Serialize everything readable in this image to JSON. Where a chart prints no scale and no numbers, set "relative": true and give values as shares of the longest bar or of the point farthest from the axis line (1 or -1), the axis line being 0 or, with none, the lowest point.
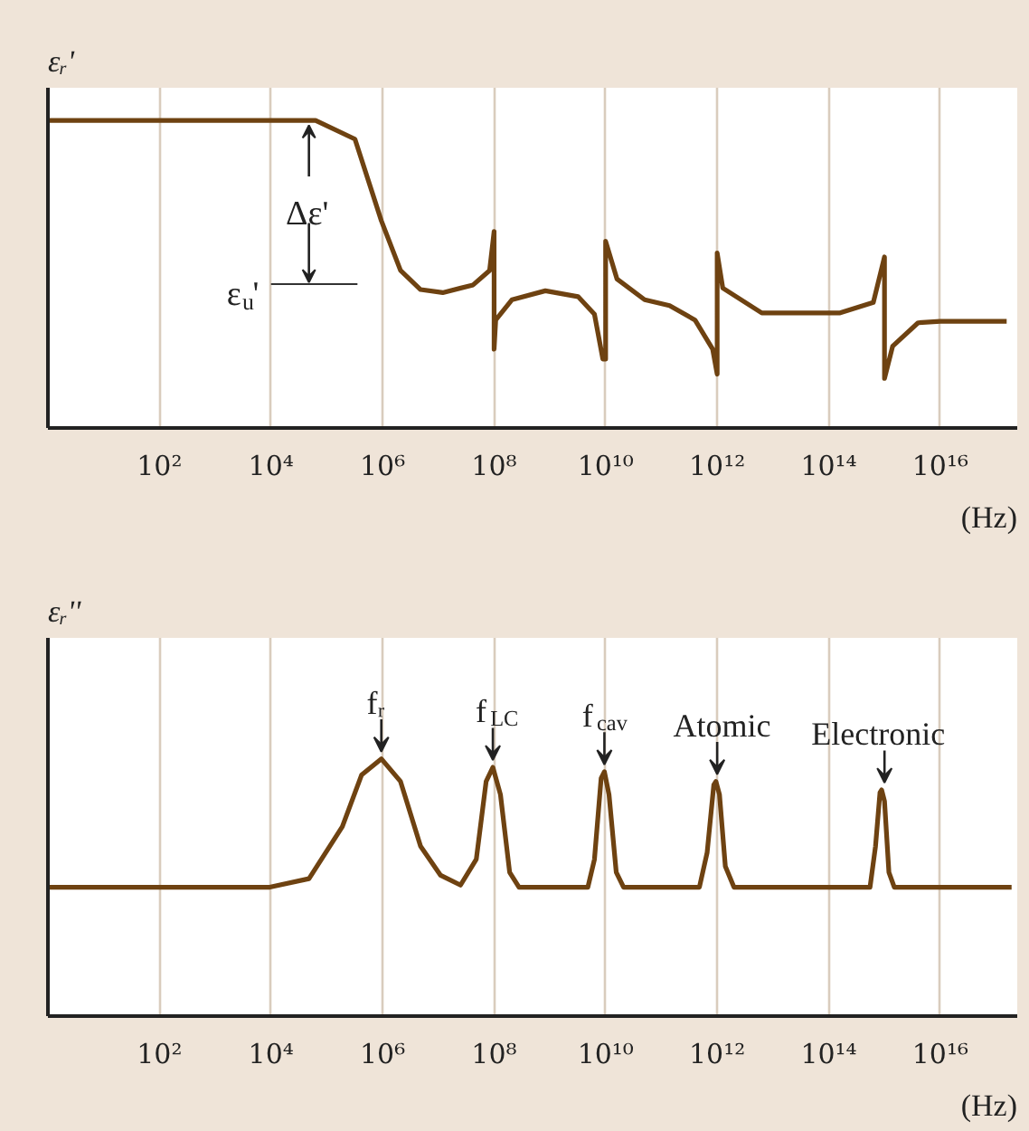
{
  "chart_data": [
    {
      "type": "line",
      "relative": true,
      "ylabel": "εᵣ'",
      "xlabel": "(Hz)",
      "log": "x",
      "grid": "x",
      "tick_labels": "x",
      "line_style": "solid",
      "marker": "none",
      "xlim": [
        1,
        2.4e+17
      ],
      "xticks": [
        {
          "value": 100.0,
          "label": "10²"
        },
        {
          "value": 10000.0,
          "label": "10⁴"
        },
        {
          "value": 1000000.0,
          "label": "10⁶"
        },
        {
          "value": 100000000.0,
          "label": "10⁸"
        },
        {
          "value": 10000000000.0,
          "label": "10¹⁰"
        },
        {
          "value": 1000000000000.0,
          "label": "10¹²"
        },
        {
          "value": 100000000000000.0,
          "label": "10¹⁴"
        },
        {
          "value": 1e+16,
          "label": "10¹⁶"
        }
      ],
      "series": [
        {
          "color": "#6e4211",
          "x": [
            1,
            63000.0,
            320000.0,
            950000.0,
            2100000.0,
            4800000.0,
            12000000.0,
            42000000.0,
            83000000.0,
            100000000.0,
            100000000.0,
            107000000.0,
            210000000.0,
            830000000.0,
            3200000000.0,
            6300000000.0,
            8900000000.0,
            10000000000.0,
            10000000000.0,
            16000000000.0,
            50000000000.0,
            140000000000.0,
            400000000000.0,
            830000000000.0,
            1000000000000.0,
            1000000000000.0,
            1260000000000.0,
            6300000000000.0,
            160000000000000.0,
            630000000000000.0,
            1000000000000000.0,
            1000000000000000.0,
            1400000000000000.0,
            4000000000000000.0,
            1e+16,
            1.55e+17
          ],
          "values": [
            1,
            1,
            0.939,
            0.674,
            0.512,
            0.45,
            0.44,
            0.465,
            0.512,
            0.639,
            0.256,
            0.351,
            0.417,
            0.446,
            0.427,
            0.37,
            0.224,
            0.224,
            0.607,
            0.484,
            0.417,
            0.398,
            0.351,
            0.256,
            0.175,
            0.569,
            0.455,
            0.374,
            0.374,
            0.408,
            0.556,
            0.161,
            0.266,
            0.342,
            0.347,
            0.347
          ]
        }
      ],
      "annotations": [
        "Δε'",
        "ε$_{u}$'"
      ]
    },
    {
      "type": "line",
      "relative": true,
      "ylabel": "εᵣ''",
      "xlabel": "(Hz)",
      "log": "x",
      "grid": "x",
      "tick_labels": "x",
      "line_style": "solid",
      "marker": "none",
      "xlim": [
        1,
        2.4e+17
      ],
      "xticks": [
        {
          "value": 100.0,
          "label": "10²"
        },
        {
          "value": 10000.0,
          "label": "10⁴"
        },
        {
          "value": 1000000.0,
          "label": "10⁶"
        },
        {
          "value": 100000000.0,
          "label": "10⁸"
        },
        {
          "value": 10000000000.0,
          "label": "10¹⁰"
        },
        {
          "value": 1000000000000.0,
          "label": "10¹²"
        },
        {
          "value": 100000000000000.0,
          "label": "10¹⁴"
        },
        {
          "value": 1e+16,
          "label": "10¹⁶"
        }
      ],
      "series": [
        {
          "color": "#6e4211",
          "x": [
            1,
            9500.0,
            48000.0,
            190000.0,
            420000.0,
            950000.0,
            2100000.0,
            4800000.0,
            11000000.0,
            25000000.0,
            48000000.0,
            72000000.0,
            95000000.0,
            130000000.0,
            190000000.0,
            280000000.0,
            4800000000.0,
            6300000000.0,
            8300000000.0,
            9500000000.0,
            11500000000.0,
            15500000000.0,
            21000000000.0,
            480000000000.0,
            660000000000.0,
            870000000000.0,
            950000000000.0,
            1100000000000.0,
            1400000000000.0,
            2000000000000.0,
            550000000000000.0,
            690000000000000.0,
            830000000000000.0,
            890000000000000.0,
            1000000000000000.0,
            1200000000000000.0,
            1500000000000000.0,
            1.9e+17
          ],
          "values": [
            0.501,
            0.501,
            0.534,
            0.736,
            0.937,
            1,
            0.912,
            0.66,
            0.547,
            0.509,
            0.61,
            0.912,
            0.967,
            0.861,
            0.559,
            0.501,
            0.501,
            0.609,
            0.924,
            0.95,
            0.861,
            0.559,
            0.501,
            0.501,
            0.635,
            0.899,
            0.912,
            0.861,
            0.582,
            0.501,
            0.501,
            0.66,
            0.869,
            0.879,
            0.836,
            0.559,
            0.501,
            0.501
          ]
        }
      ],
      "annotations": [
        {
          "text": "fᵣ",
          "x": 950000.0,
          "y": 1
        },
        {
          "text": "f$_{LC}$",
          "x": 95000000.0,
          "y": 0.967
        },
        {
          "text": "f$_{cav}$",
          "x": 9500000000.0,
          "y": 0.95
        },
        {
          "text": "Atomic",
          "x": 1000000000000.0,
          "y": 0.912
        },
        {
          "text": "Electronic",
          "x": 1000000000000000.0,
          "y": 0.879
        }
      ]
    }
  ]
}
